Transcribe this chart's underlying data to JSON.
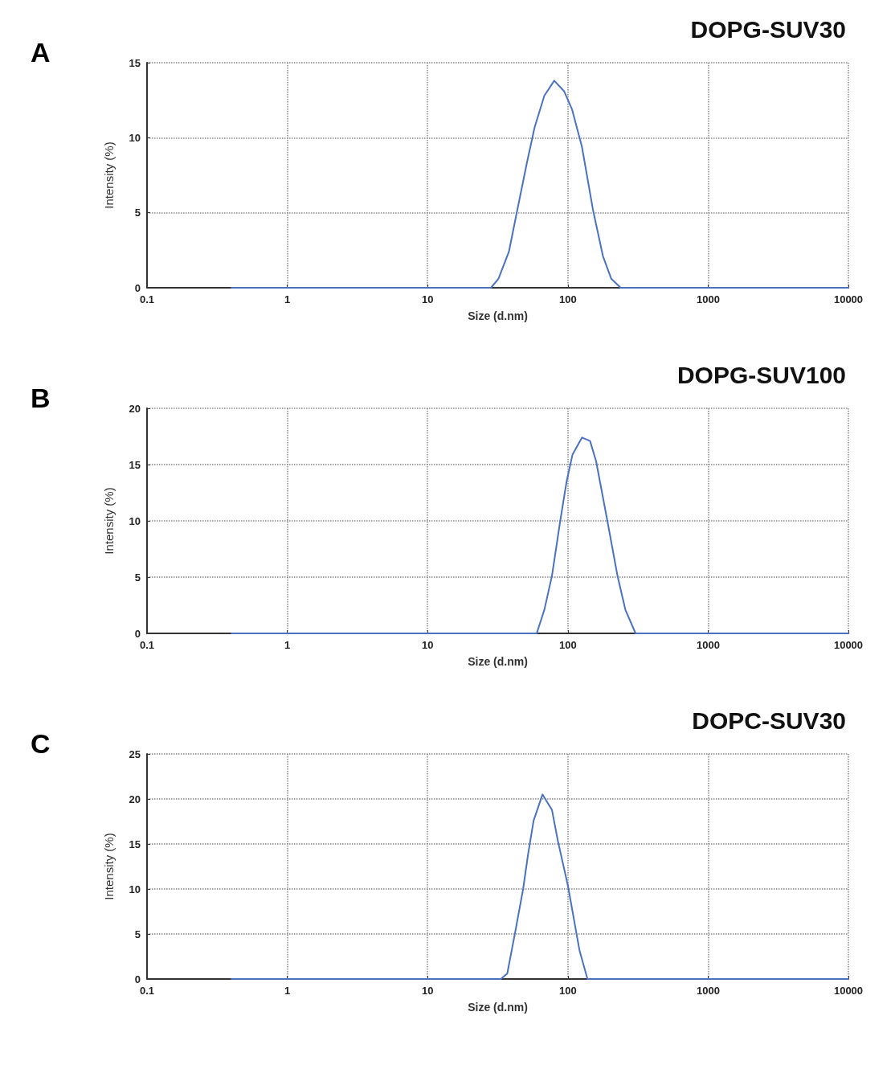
{
  "chart_data": [
    {
      "type": "line",
      "title": "DOPG-SUV30",
      "annotations": [
        "A"
      ],
      "xlabel": "Size (d.nm)",
      "ylabel": "Intensity (%)",
      "log": "x",
      "grid": true,
      "line_style": "solid",
      "xlim": [
        0.1,
        10000
      ],
      "xticks": [
        0.1,
        1,
        10,
        100,
        1000,
        10000
      ],
      "ylim": [
        0,
        15
      ],
      "yticks": [
        0,
        5,
        10,
        15
      ],
      "series": [
        {
          "color": "#4a72c0",
          "x": [
            0.4,
            28.3,
            32,
            38,
            43,
            51,
            58,
            68,
            80,
            94,
            107,
            126,
            151,
            178,
            204,
            238,
            10000
          ],
          "values": [
            0,
            0,
            0.6,
            2.4,
            4.9,
            8.3,
            10.7,
            12.8,
            13.8,
            13.1,
            11.9,
            9.4,
            5.2,
            2.1,
            0.6,
            0,
            0
          ]
        }
      ]
    },
    {
      "type": "line",
      "title": "DOPG-SUV100",
      "annotations": [
        "B"
      ],
      "xlabel": "Size (d.nm)",
      "ylabel": "Intensity (%)",
      "log": "x",
      "grid": true,
      "line_style": "solid",
      "xlim": [
        0.1,
        10000
      ],
      "xticks": [
        0.1,
        1,
        10,
        100,
        1000,
        10000
      ],
      "ylim": [
        0,
        20
      ],
      "yticks": [
        0,
        5,
        10,
        15,
        20
      ],
      "series": [
        {
          "color": "#4a72c0",
          "x": [
            0.4,
            60,
            68,
            77,
            88,
            98,
            108,
            126,
            144,
            159,
            190,
            226,
            257,
            304,
            10000
          ],
          "values": [
            0,
            0,
            2.1,
            5.1,
            9.9,
            13.5,
            15.9,
            17.4,
            17.1,
            15.3,
            10.2,
            5.1,
            2.1,
            0,
            0
          ]
        }
      ]
    },
    {
      "type": "line",
      "title": "DOPC-SUV30",
      "annotations": [
        "C"
      ],
      "xlabel": "Size (d.nm)",
      "ylabel": "Intensity (%)",
      "log": "x",
      "grid": true,
      "line_style": "solid",
      "xlim": [
        0.1,
        10000
      ],
      "xticks": [
        0.1,
        1,
        10,
        100,
        1000,
        10000
      ],
      "ylim": [
        0,
        25
      ],
      "yticks": [
        0,
        5,
        10,
        15,
        20,
        25
      ],
      "series": [
        {
          "color": "#4a72c0",
          "x": [
            0.4,
            33.3,
            37,
            42,
            48,
            52,
            57,
            66,
            77,
            85,
            100,
            121,
            138,
            10000
          ],
          "values": [
            0,
            0,
            0.6,
            5.1,
            10,
            13.8,
            17.6,
            20.5,
            18.8,
            15.3,
            10.4,
            3.2,
            0,
            0
          ]
        }
      ]
    }
  ]
}
